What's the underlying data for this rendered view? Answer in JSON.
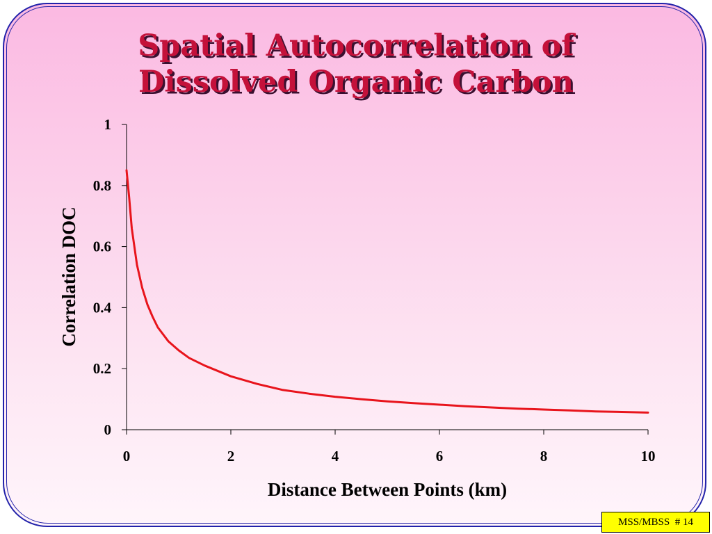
{
  "slide": {
    "title_line1": "Spatial Autocorrelation of",
    "title_line2": "Dissolved Organic Carbon",
    "footer_tag": "MSS/MBSS  # 14",
    "colors": {
      "background_top": "#fbb9e2",
      "background_bottom": "#fff5fb",
      "border": "#2222aa",
      "title": "#c4113a",
      "footer_tag_bg": "#ffff00"
    }
  },
  "chart_data": {
    "type": "line",
    "title": "",
    "xlabel": "Distance Between Points (km)",
    "ylabel": "Correlation DOC",
    "xlim": [
      0,
      10
    ],
    "ylim": [
      0,
      1
    ],
    "x_ticks": [
      "0",
      "2",
      "4",
      "6",
      "8",
      "10"
    ],
    "y_ticks": [
      "0",
      "0.2",
      "0.4",
      "0.6",
      "0.8",
      "1"
    ],
    "grid": false,
    "legend": "none",
    "series": [
      {
        "color": "#e8141c",
        "x": [
          0,
          0.05,
          0.1,
          0.2,
          0.3,
          0.4,
          0.5,
          0.6,
          0.8,
          1.0,
          1.2,
          1.5,
          2.0,
          2.5,
          3.0,
          3.5,
          4.0,
          4.5,
          5.0,
          5.5,
          6.0,
          6.5,
          7.0,
          7.5,
          8.0,
          8.5,
          9.0,
          9.5,
          10.0
        ],
        "y": [
          0.85,
          0.76,
          0.66,
          0.54,
          0.465,
          0.41,
          0.37,
          0.335,
          0.29,
          0.26,
          0.235,
          0.21,
          0.175,
          0.15,
          0.13,
          0.118,
          0.108,
          0.1,
          0.093,
          0.087,
          0.082,
          0.077,
          0.073,
          0.069,
          0.066,
          0.063,
          0.06,
          0.058,
          0.056
        ]
      }
    ]
  }
}
